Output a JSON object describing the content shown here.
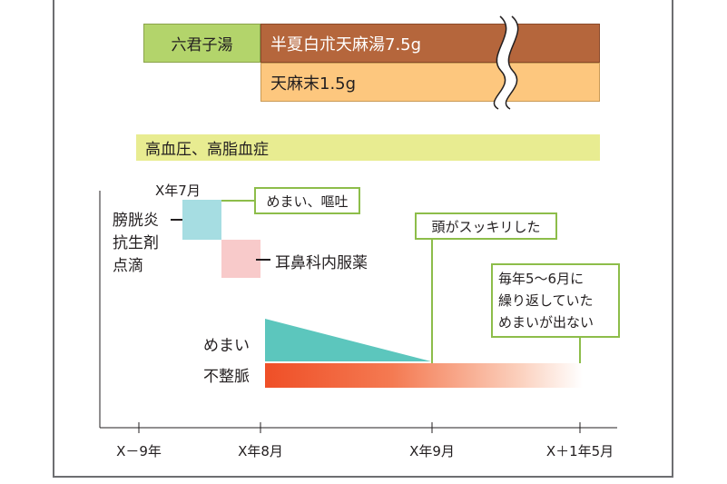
{
  "medication": {
    "rikkunshito": "六君子湯",
    "hangebyakujutsu": "半夏白朮天麻湯7.5g",
    "tenma_powder": "天麻末1.5g"
  },
  "background_condition": "高血圧、高脂血症",
  "events": {
    "date_label": "X年7月",
    "iv_drip": [
      "膀胱炎",
      "抗生剤",
      "点滴"
    ],
    "ent_medicine": "耳鼻科内服薬",
    "dizziness_vomiting": "めまい、嘔吐"
  },
  "callouts": {
    "head_clear": "頭がスッキリした",
    "no_dizziness": [
      "毎年5～6月に",
      "繰り返していた",
      "めまいが出ない"
    ]
  },
  "symptoms": {
    "dizziness": "めまい",
    "arrhythmia": "不整脈"
  },
  "axis": {
    "ticks": [
      "X－9年",
      "X年8月",
      "X年9月",
      "X＋1年5月"
    ]
  },
  "colors": {
    "green_bar": "#b3d46b",
    "brown_bar": "#b5663c",
    "orange_bar": "#fdc77e",
    "condition_bar": "#e8ec91",
    "iv_box": "#a6dde2",
    "ent_box": "#f8caca",
    "callout_border": "#8dbd4a",
    "teal": "#5cc6bd",
    "red": "#ef4f27"
  }
}
